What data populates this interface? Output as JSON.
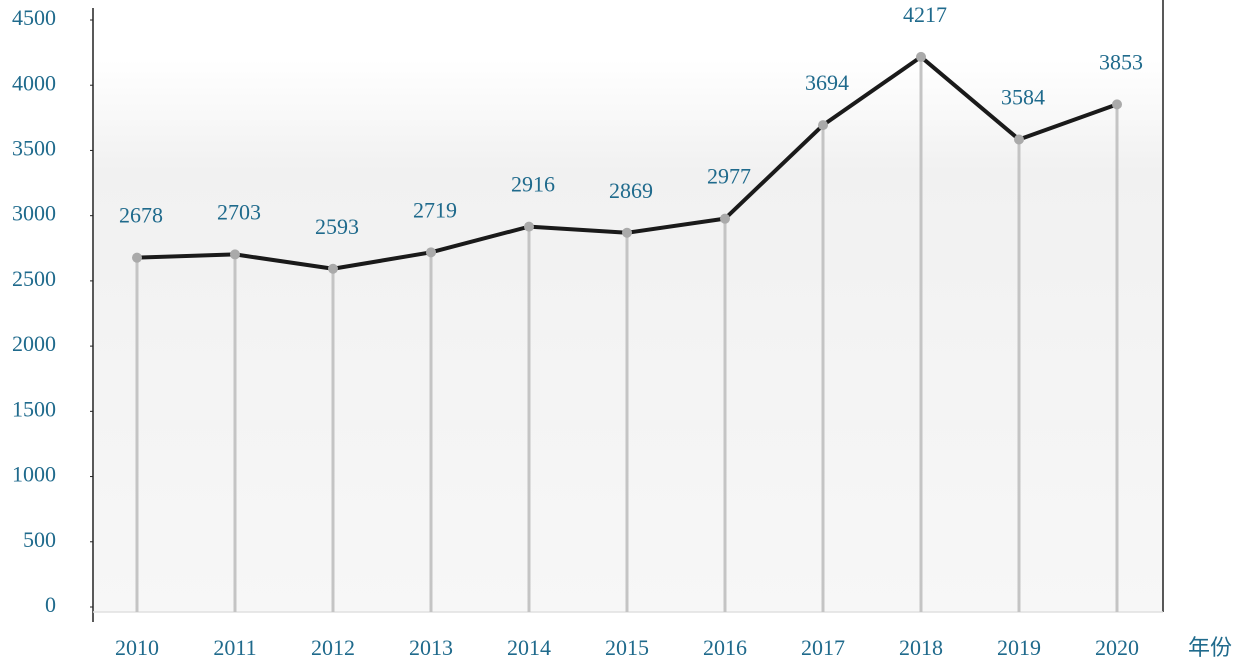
{
  "chart_data": {
    "type": "line",
    "categories": [
      "2010",
      "2011",
      "2012",
      "2013",
      "2014",
      "2015",
      "2016",
      "2017",
      "2018",
      "2019",
      "2020"
    ],
    "values": [
      2678,
      2703,
      2593,
      2719,
      2916,
      2869,
      2977,
      3694,
      4217,
      3584,
      3853
    ],
    "x_label": "年份",
    "color": "#1a1a1a",
    "ylim": [
      0,
      4500
    ],
    "yticks": [
      0,
      500,
      1000,
      1500,
      2000,
      2500,
      3000,
      3500,
      4000,
      4500
    ]
  }
}
